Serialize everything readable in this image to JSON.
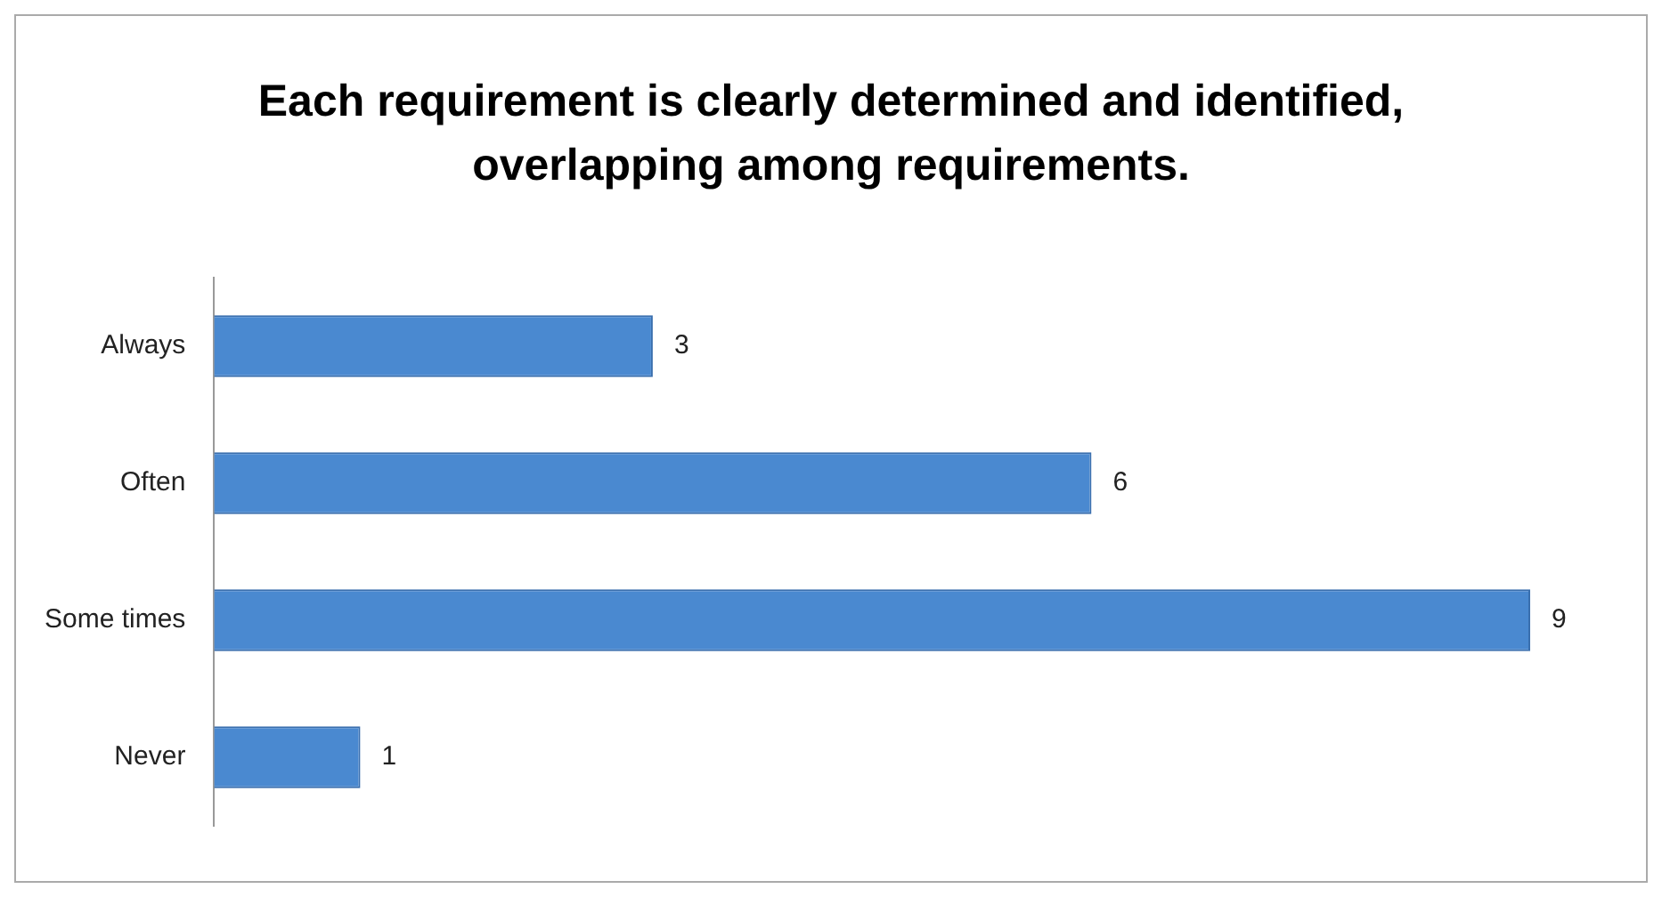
{
  "chart_data": {
    "type": "bar",
    "orientation": "horizontal",
    "title": "Each requirement is clearly determined and identified, overlapping among requirements.",
    "categories": [
      "Always",
      "Often",
      "Some times",
      "Never"
    ],
    "values": [
      3,
      6,
      9,
      1
    ],
    "color": "#4a89d0",
    "data_labels": true,
    "legend": false
  }
}
